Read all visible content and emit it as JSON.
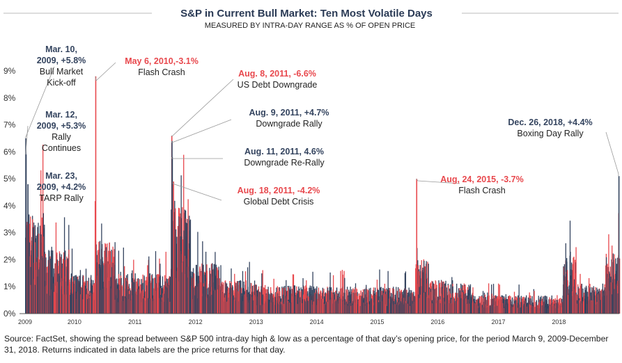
{
  "colors": {
    "up": "#34445f",
    "down": "#e8484d",
    "title": "#2a3a55",
    "grid": "#cccccc",
    "leader": "#999999"
  },
  "chart_data": {
    "type": "bar",
    "title": "S&P in Current Bull Market: Ten Most Volatile Days",
    "subtitle": "MEASURED BY INTRA-DAY RANGE AS % OF OPEN PRICE",
    "xlabel": "",
    "ylabel": "",
    "ylim": [
      0,
      9.3
    ],
    "x_range": [
      "2009-03-09",
      "2018-12-31"
    ],
    "yticks": [
      "0%",
      "1%",
      "2%",
      "3%",
      "4%",
      "5%",
      "6%",
      "7%",
      "8%",
      "9%"
    ],
    "xticks": [
      "2009",
      "2010",
      "2011",
      "2012",
      "2013",
      "2014",
      "2015",
      "2016",
      "2017",
      "2018"
    ],
    "legend": "none",
    "grid": false,
    "series": [
      {
        "name": "",
        "color_key": "up",
        "note": "daily intra-day range, positive days"
      },
      {
        "name": "",
        "color_key": "down",
        "note": "daily intra-day range, negative days"
      }
    ],
    "highlights": [
      {
        "date": "2009-03-10",
        "value": 6.5,
        "dir": "up",
        "label": "Mar. 10, 2009, +5.8%",
        "lines": [
          "Mar. 10,",
          "2009, +5.8%"
        ],
        "desc": [
          "Bull Market",
          "Kick-off"
        ]
      },
      {
        "date": "2009-03-12",
        "value": 5.9,
        "dir": "up",
        "label": "Mar. 12, 2009, +5.3%",
        "lines": [
          "Mar. 12,",
          "2009, +5.3%"
        ],
        "desc": [
          "Rally",
          "Continues"
        ]
      },
      {
        "date": "2009-03-23",
        "value": 4.8,
        "dir": "up",
        "label": "Mar. 23, 2009, +4.2%",
        "lines": [
          "Mar. 23,",
          "2009, +4.2%"
        ],
        "desc": [
          "TARP Rally"
        ]
      },
      {
        "date": "2010-05-06",
        "value": 8.8,
        "dir": "down",
        "label": "May 6, 2010,-3.1%",
        "lines": [
          "May 6, 2010,-3.1%"
        ],
        "desc": [
          "Flash Crash"
        ]
      },
      {
        "date": "2011-08-08",
        "value": 6.6,
        "dir": "down",
        "label": "Aug. 8, 2011, -6.6%",
        "lines": [
          "Aug. 8, 2011, -6.6%"
        ],
        "desc": [
          "US Debt Downgrade"
        ]
      },
      {
        "date": "2011-08-09",
        "value": 6.4,
        "dir": "up",
        "label": "Aug. 9, 2011, +4.7%",
        "lines": [
          "Aug. 9, 2011, +4.7%"
        ],
        "desc": [
          "Downgrade Rally"
        ]
      },
      {
        "date": "2011-08-11",
        "value": 5.8,
        "dir": "up",
        "label": "Aug. 11, 2011, 4.6%",
        "lines": [
          "Aug. 11, 2011, 4.6%"
        ],
        "desc": [
          "Downgrade Re-Rally"
        ]
      },
      {
        "date": "2011-08-18",
        "value": 4.9,
        "dir": "down",
        "label": "Aug. 18, 2011, -4.2%",
        "lines": [
          "Aug. 18, 2011, -4.2%"
        ],
        "desc": [
          "Global Debt Crisis"
        ]
      },
      {
        "date": "2015-08-24",
        "value": 5.0,
        "dir": "down",
        "label": "Aug, 24, 2015, -3.7%",
        "lines": [
          "Aug, 24, 2015, -3.7%"
        ],
        "desc": [
          "Flash Crash"
        ]
      },
      {
        "date": "2018-12-26",
        "value": 5.1,
        "dir": "up",
        "label": "Dec. 26, 2018, +4.4%",
        "lines": [
          "Dec. 26, 2018, +4.4%"
        ],
        "desc": [
          "Boxing Day Rally"
        ]
      }
    ]
  },
  "source_text": "Source: FactSet, showing the spread between S&P 500 intra-day high & low as a percentage of that day’s opening price, for the period March 9, 2009-December 31, 2018. Returns indicated in data labels are the price returns for that day."
}
